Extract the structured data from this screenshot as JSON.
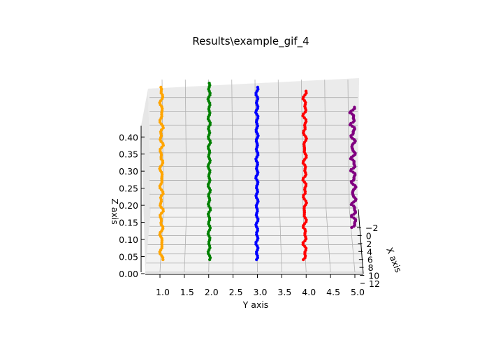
{
  "chart_data": {
    "type": "scatter",
    "title": "Results\\example_gif_4",
    "xlabel": "X axis",
    "ylabel": "Y axis",
    "zlabel": "Z axis",
    "projection": "3d",
    "grid": true,
    "xlim": [
      -4,
      12
    ],
    "ylim": [
      0.7,
      5.2
    ],
    "zlim": [
      0.0,
      0.47
    ],
    "x_ticks": [
      "−2",
      "0",
      "2",
      "4",
      "6",
      "8",
      "10",
      "12"
    ],
    "y_ticks": [
      "1.0",
      "1.5",
      "2.0",
      "2.5",
      "3.0",
      "3.5",
      "4.0",
      "4.5",
      "5.0"
    ],
    "z_ticks": [
      "0.00",
      "0.05",
      "0.10",
      "0.15",
      "0.20",
      "0.25",
      "0.30",
      "0.35",
      "0.40"
    ],
    "series": [
      {
        "color": "#ffa500",
        "y": 1.0,
        "z_range": [
          0.0,
          0.43
        ]
      },
      {
        "color": "#008000",
        "y": 2.0,
        "z_range": [
          0.0,
          0.44
        ]
      },
      {
        "color": "#0000ff",
        "y": 3.0,
        "z_range": [
          0.0,
          0.43
        ]
      },
      {
        "color": "#ff0000",
        "y": 4.0,
        "z_range": [
          0.0,
          0.42
        ]
      },
      {
        "color": "#800080",
        "y": 5.0,
        "z_range": [
          0.08,
          0.38
        ]
      }
    ]
  }
}
